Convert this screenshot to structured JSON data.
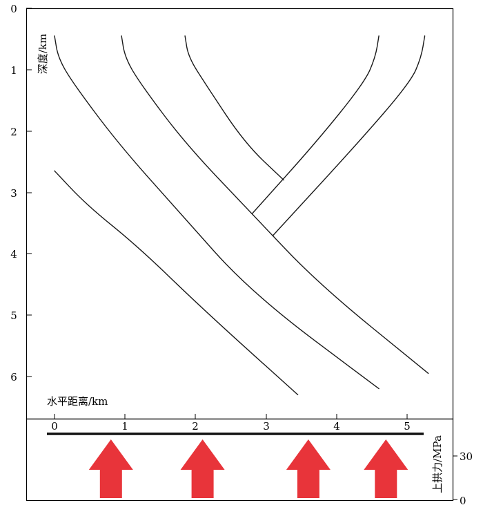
{
  "depth_axis": {
    "title": "深度/km",
    "ticks": [
      "0",
      "1",
      "2",
      "3",
      "4",
      "5",
      "6"
    ]
  },
  "distance_axis": {
    "title": "水平距离/km",
    "ticks": [
      "0",
      "1",
      "2",
      "3",
      "4",
      "5"
    ]
  },
  "force_axis": {
    "title": "上拱力/MPa",
    "ticks": [
      "30",
      "0"
    ]
  },
  "colors": {
    "arrow": "#e8343a",
    "line": "#1a1a1a",
    "frame": "#000000"
  },
  "arrows": [
    {
      "x_km": 0.8
    },
    {
      "x_km": 2.1
    },
    {
      "x_km": 3.6
    },
    {
      "x_km": 4.7
    }
  ],
  "faults": [
    {
      "name": "fault-lower-left",
      "points": [
        [
          0.0,
          2.65
        ],
        [
          0.45,
          3.2
        ],
        [
          1.2,
          3.9
        ],
        [
          2.1,
          4.9
        ],
        [
          3.45,
          6.3
        ]
      ]
    },
    {
      "name": "fault-main-left",
      "points": [
        [
          0.0,
          0.45
        ],
        [
          0.05,
          0.8
        ],
        [
          0.25,
          1.2
        ],
        [
          0.9,
          2.2
        ],
        [
          1.75,
          3.3
        ],
        [
          2.8,
          4.65
        ],
        [
          4.6,
          6.2
        ]
      ]
    },
    {
      "name": "fault-main-right",
      "points": [
        [
          0.95,
          0.45
        ],
        [
          1.0,
          0.8
        ],
        [
          1.2,
          1.2
        ],
        [
          1.85,
          2.2
        ],
        [
          2.8,
          3.35
        ],
        [
          3.75,
          4.5
        ],
        [
          5.3,
          5.95
        ]
      ]
    },
    {
      "name": "fault-inner-left",
      "points": [
        [
          1.85,
          0.45
        ],
        [
          1.9,
          0.8
        ],
        [
          2.15,
          1.25
        ],
        [
          2.7,
          2.2
        ],
        [
          3.25,
          2.8
        ]
      ]
    },
    {
      "name": "fault-inner-right",
      "points": [
        [
          4.6,
          0.45
        ],
        [
          4.55,
          0.8
        ],
        [
          4.4,
          1.2
        ],
        [
          3.7,
          2.2
        ],
        [
          2.8,
          3.35
        ]
      ]
    },
    {
      "name": "fault-outer-right",
      "points": [
        [
          5.25,
          0.45
        ],
        [
          5.2,
          0.8
        ],
        [
          5.05,
          1.2
        ],
        [
          4.3,
          2.2
        ],
        [
          3.1,
          3.7
        ]
      ]
    }
  ]
}
